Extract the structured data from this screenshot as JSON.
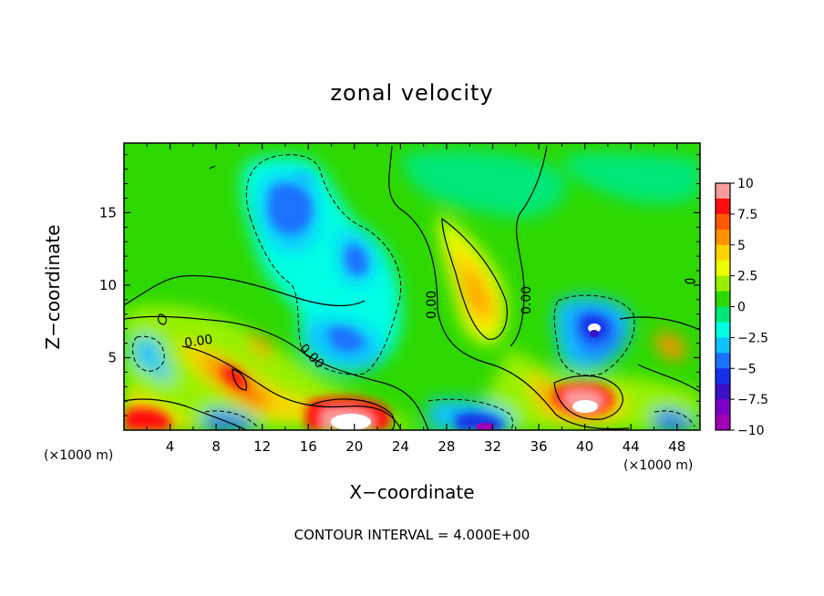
{
  "chart_data": {
    "type": "heatmap",
    "title": "zonal velocity",
    "xlabel": "X−coordinate",
    "ylabel": "Z−coordinate",
    "x_unit_label_left": "(×1000 m)",
    "x_unit_label_right": "(×1000 m)",
    "xlim": [
      0,
      50
    ],
    "ylim": [
      0,
      19.8
    ],
    "x_ticks": [
      4,
      8,
      12,
      16,
      20,
      24,
      28,
      32,
      36,
      40,
      44,
      48
    ],
    "y_ticks": [
      5,
      10,
      15
    ],
    "colorbar": {
      "ticks": [
        "10",
        "7.5",
        "5",
        "2.5",
        "0",
        "−2.5",
        "−5",
        "−7.5",
        "−10"
      ],
      "range": [
        -10,
        10
      ],
      "colors": [
        "#fb9c9c",
        "#ff0c0c",
        "#ff5a00",
        "#ff9200",
        "#ffd400",
        "#ecff00",
        "#98f000",
        "#2cd800",
        "#00e87a",
        "#00ffe4",
        "#10c2ff",
        "#1a72ff",
        "#1430e8",
        "#3a10c8",
        "#7a00c8",
        "#a000b4"
      ]
    },
    "contour_interval": "CONTOUR INTERVAL = 4.000E+00",
    "contour_labels": [
      "0.00",
      "0.00",
      "0.00",
      "0.00"
    ],
    "features": [
      {
        "kind": "negative",
        "x": 15,
        "z": 14.5,
        "value": -5.5
      },
      {
        "kind": "negative",
        "x": 21,
        "z": 11,
        "value": -5
      },
      {
        "kind": "negative",
        "x": 19,
        "z": 6,
        "value": -5.5
      },
      {
        "kind": "negative",
        "x": 40.5,
        "z": 7,
        "value": -10
      },
      {
        "kind": "negative",
        "x": 31,
        "z": 0.5,
        "value": -9
      },
      {
        "kind": "positive",
        "x": 20,
        "z": 1,
        "value": 10
      },
      {
        "kind": "positive",
        "x": 40.5,
        "z": 1.8,
        "value": 10
      },
      {
        "kind": "positive",
        "x": 10,
        "z": 4,
        "value": 8
      },
      {
        "kind": "positive",
        "x": 30.5,
        "z": 10,
        "value": 5
      },
      {
        "kind": "positive",
        "x": 2,
        "z": 1,
        "value": 8
      },
      {
        "kind": "positive",
        "x": 47,
        "z": 6,
        "value": 5
      }
    ]
  }
}
